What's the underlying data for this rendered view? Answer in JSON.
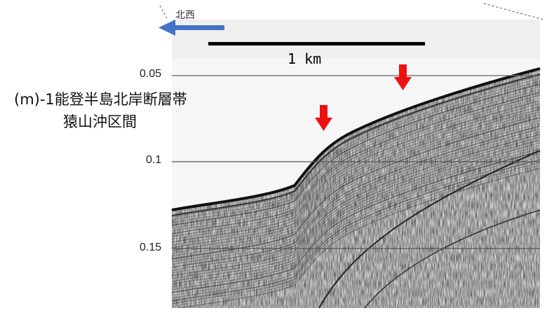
{
  "title": {
    "line1": "(m)-1能登半島北岸断層帯",
    "line2": "猿山沖区間"
  },
  "direction": {
    "label": "北西",
    "arrow_color": "#4472c4"
  },
  "scale_bar": {
    "label": "1 km"
  },
  "depth_ticks": [
    "0.05",
    "0.1",
    "0.15"
  ],
  "markers": {
    "color": "#ee1111",
    "count": 2
  },
  "icons": [
    "arrow-left-icon",
    "arrow-down-icon"
  ]
}
